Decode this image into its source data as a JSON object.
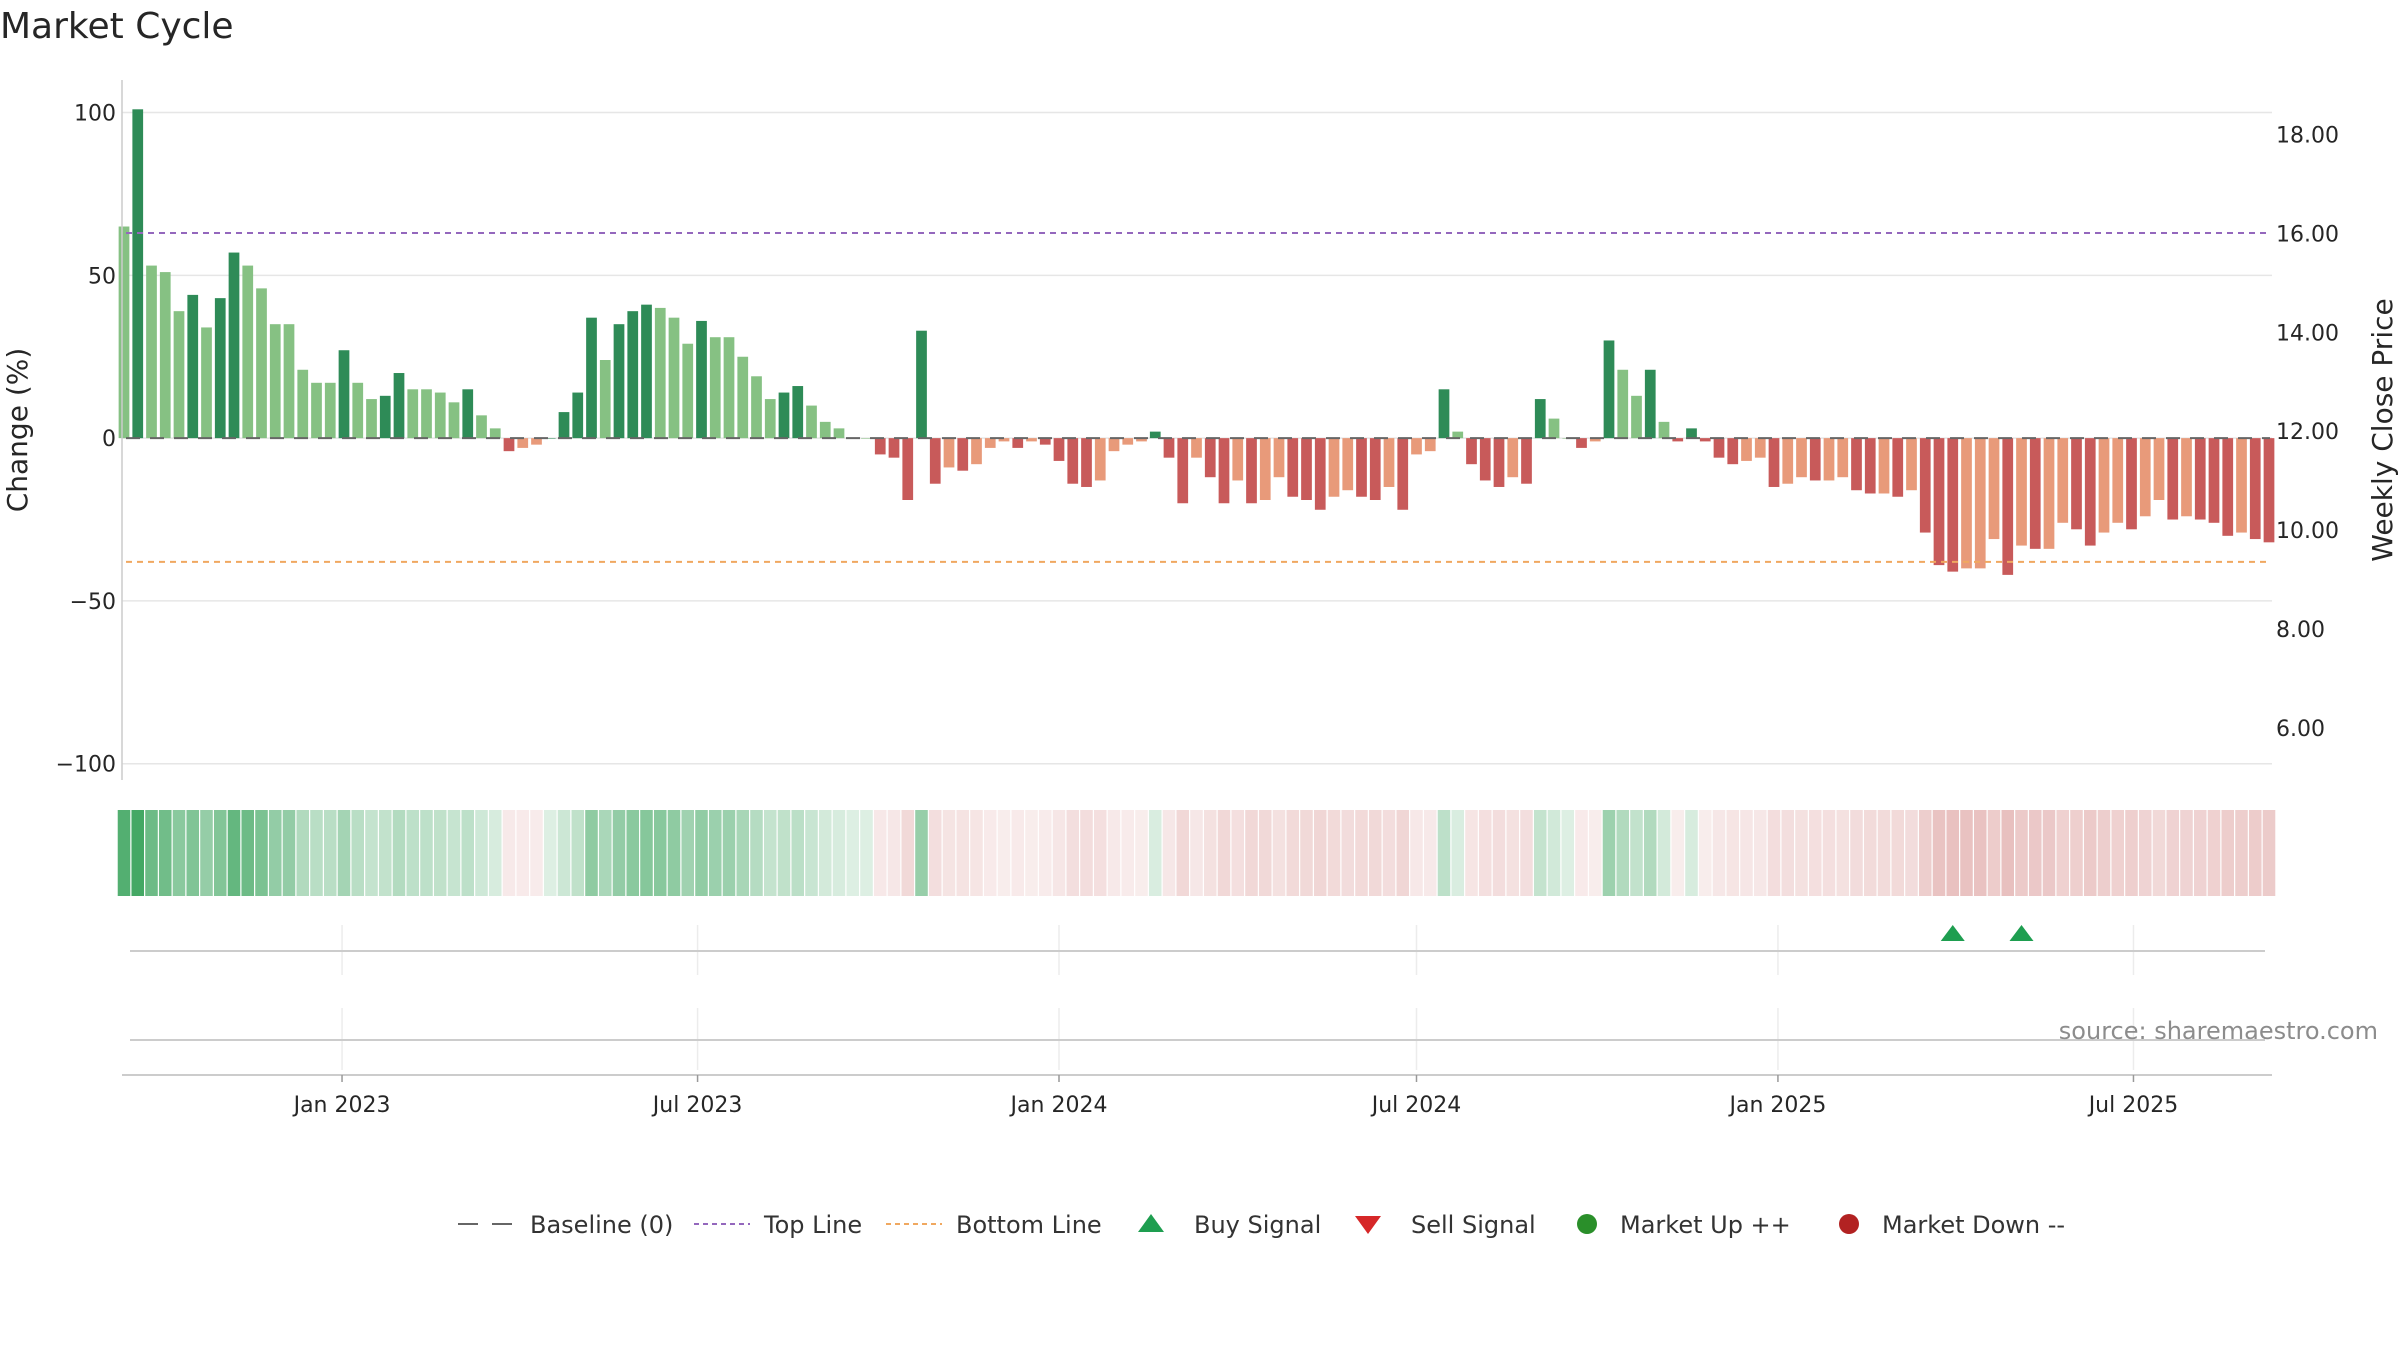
{
  "chart_data": {
    "type": "bar",
    "title": "Market Cycle",
    "ylabel": "Change (%)",
    "y2label": "Weekly Close Price",
    "ylim": [
      -105,
      110
    ],
    "yticks": [
      100,
      50,
      0,
      -50,
      -100
    ],
    "ytick_labels": [
      "100",
      "50",
      "0",
      "−50",
      "−100"
    ],
    "y2lim": [
      4.95,
      19.1
    ],
    "y2ticks": [
      18,
      16,
      14,
      12,
      10,
      8,
      6
    ],
    "y2tick_labels": [
      "18.00",
      "16.00",
      "14.00",
      "12.00",
      "10.00",
      "8.00",
      "6.00"
    ],
    "top_line": 63,
    "bottom_line": -38,
    "baseline": 0,
    "x_start": "2022-09-12",
    "bar_interval_days": 7,
    "xticks": [
      {
        "date": "2023-01-01",
        "label": "Jan 2023"
      },
      {
        "date": "2023-07-01",
        "label": "Jul 2023"
      },
      {
        "date": "2024-01-01",
        "label": "Jan 2024"
      },
      {
        "date": "2024-07-01",
        "label": "Jul 2024"
      },
      {
        "date": "2025-01-01",
        "label": "Jan 2025"
      },
      {
        "date": "2025-07-01",
        "label": "Jul 2025"
      }
    ],
    "values": [
      65,
      101,
      53,
      51,
      39,
      44,
      34,
      43,
      57,
      53,
      46,
      35,
      35,
      21,
      17,
      17,
      27,
      17,
      12,
      13,
      20,
      15,
      15,
      14,
      11,
      15,
      7,
      3,
      -4,
      -3,
      -2,
      0,
      8,
      14,
      37,
      24,
      35,
      39,
      41,
      40,
      37,
      29,
      36,
      31,
      31,
      25,
      19,
      12,
      14,
      16,
      10,
      5,
      3,
      0,
      0,
      -5,
      -6,
      -19,
      33,
      -14,
      -9,
      -10,
      -8,
      -3,
      -1,
      -3,
      -1,
      -2,
      -7,
      -14,
      -15,
      -13,
      -4,
      -2,
      -1,
      2,
      -6,
      -20,
      -6,
      -12,
      -20,
      -13,
      -20,
      -19,
      -12,
      -18,
      -19,
      -22,
      -18,
      -16,
      -18,
      -19,
      -15,
      -22,
      -5,
      -4,
      15,
      2,
      -8,
      -13,
      -15,
      -12,
      -14,
      12,
      6,
      0,
      -3,
      -1,
      30,
      21,
      13,
      21,
      5,
      -1,
      3,
      -1,
      -6,
      -8,
      -7,
      -6,
      -15,
      -14,
      -12,
      -13,
      -13,
      -12,
      -16,
      -17,
      -17,
      -18,
      -16,
      -29,
      -39,
      -41,
      -40,
      -40,
      -31,
      -42,
      -33,
      -34,
      -34,
      -26,
      -28,
      -33,
      -29,
      -26,
      -28,
      -24,
      -19,
      -25,
      -24,
      -25,
      -26,
      -30,
      -29,
      -31,
      -32
    ],
    "series": [
      {
        "name": "Baseline (0)"
      },
      {
        "name": "Top Line"
      },
      {
        "name": "Bottom Line"
      },
      {
        "name": "Buy Signal"
      },
      {
        "name": "Sell Signal"
      },
      {
        "name": "Market Up ++"
      },
      {
        "name": "Market Down --"
      }
    ],
    "buy_signals": [
      133,
      138
    ],
    "sell_signals": [],
    "legend_position": "bottom",
    "colors": {
      "up_strong": "#2e8b57",
      "up_weak": "#86c183",
      "down_strong": "#c85a5a",
      "down_weak": "#e89a7a",
      "top_line": "#9467bd",
      "bottom_line": "#f0a860",
      "baseline": "#666666",
      "buy": "#1e9e50",
      "sell": "#d62728",
      "market_up": "#2a8f2a",
      "market_down": "#b22222"
    }
  },
  "source": "source: sharemaestro.com"
}
